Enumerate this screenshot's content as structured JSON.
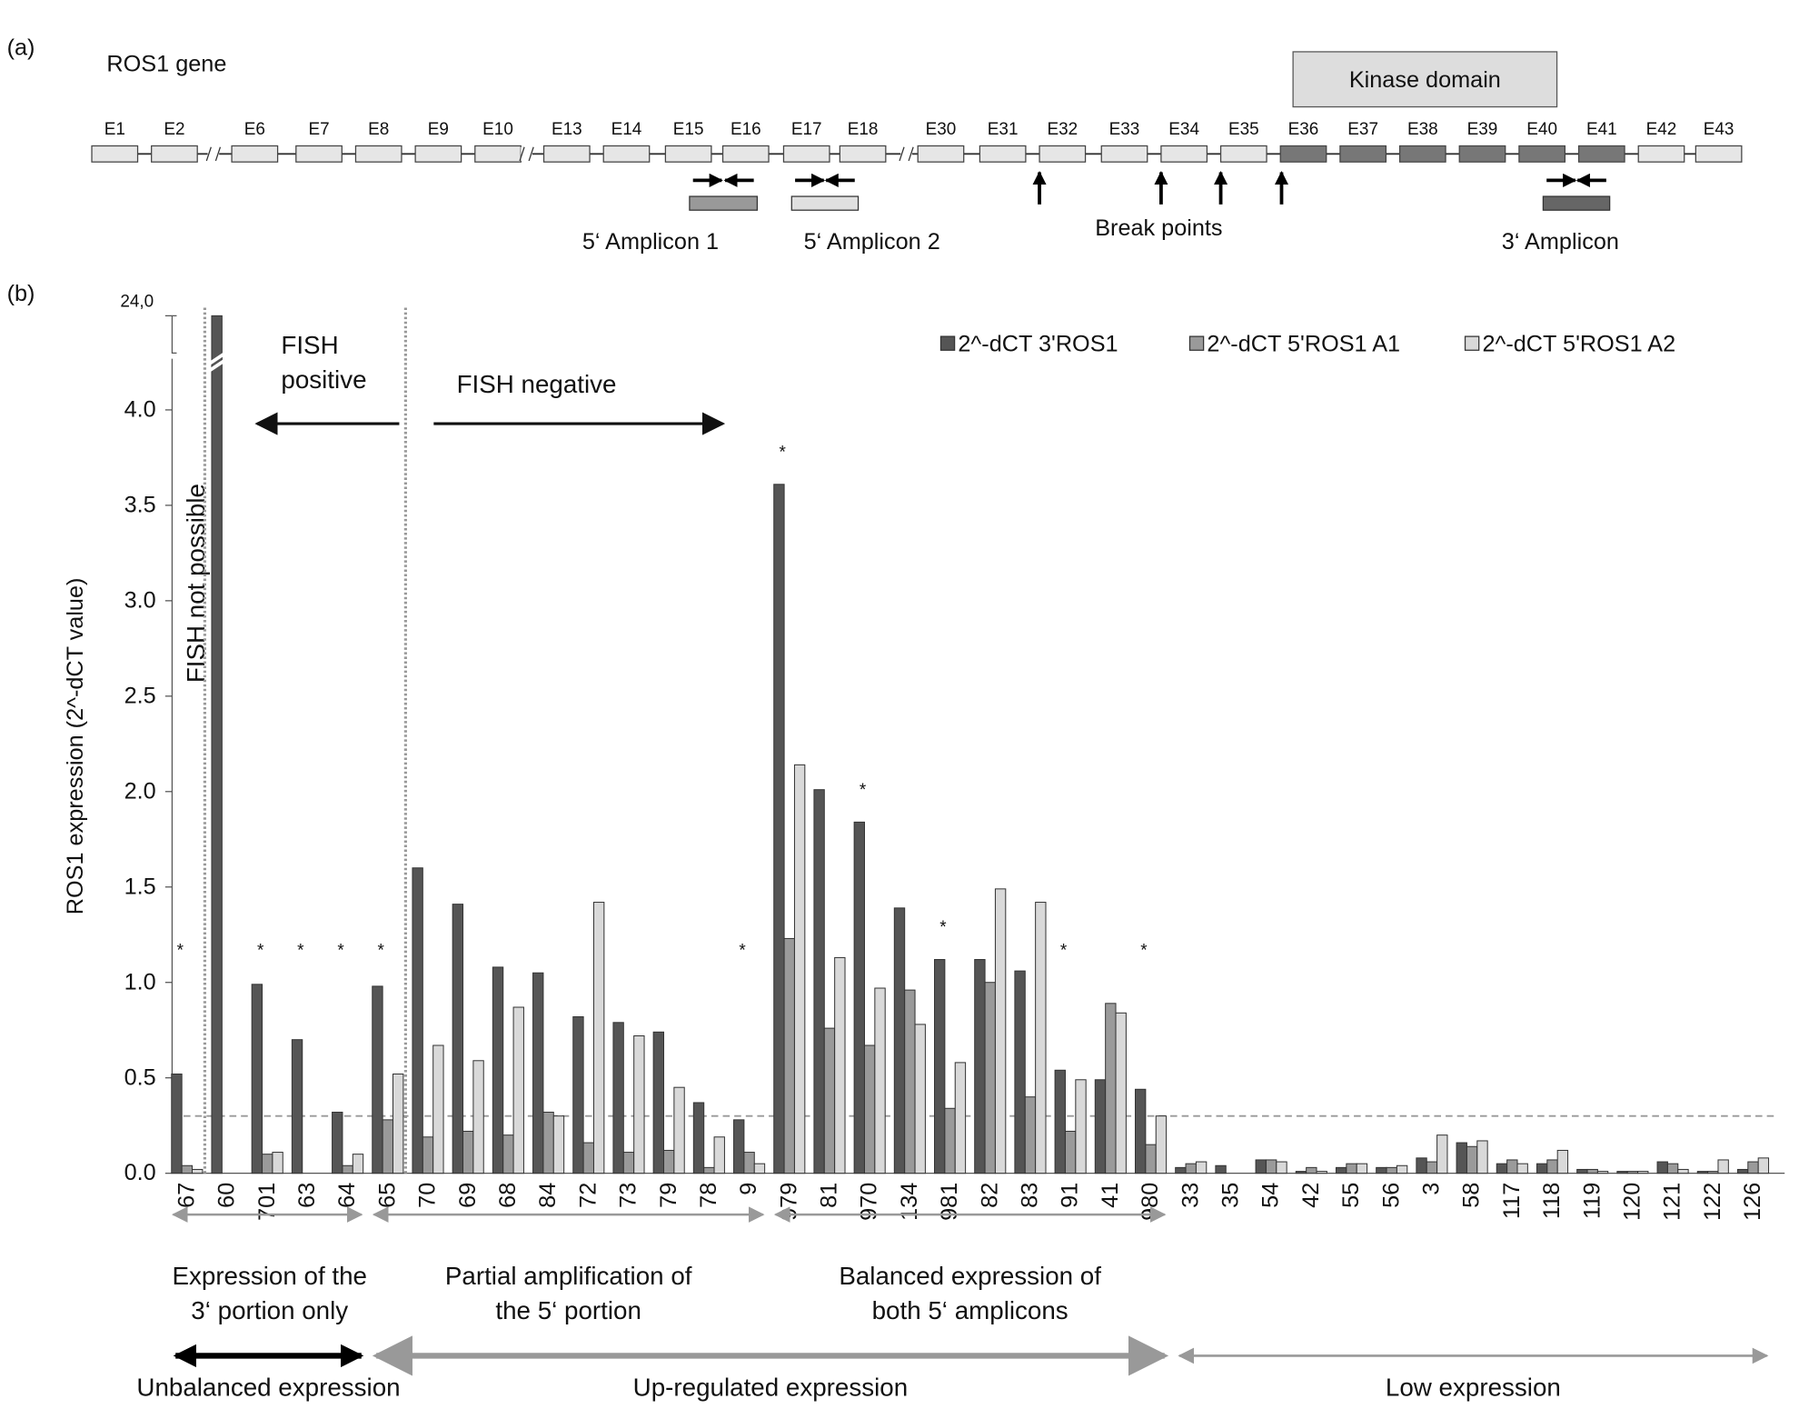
{
  "panel_a_label": "(a)",
  "panel_b_label": "(b)",
  "gene_diagram": {
    "title": "ROS1 gene",
    "domain_label": "Kinase domain",
    "exons": [
      "E1",
      "E2",
      "E6",
      "E7",
      "E8",
      "E9",
      "E10",
      "E13",
      "E14",
      "E15",
      "E16",
      "E17",
      "E18",
      "E30",
      "E31",
      "E32",
      "E33",
      "E34",
      "E35",
      "E36",
      "E37",
      "E38",
      "E39",
      "E40",
      "E41",
      "E42",
      "E43"
    ],
    "shaded_exons": [
      "E36",
      "E37",
      "E38",
      "E39",
      "E40",
      "E41"
    ],
    "amplicon_labels": [
      "5‘ Amplicon 1",
      "5‘ Amplicon 2",
      "3‘ Amplicon"
    ],
    "break_points_label": "Break points"
  },
  "chart_data": {
    "type": "bar",
    "y_label": "ROS1 expression   (2^-dCT value)",
    "categories": [
      "67",
      "60",
      "701",
      "63",
      "64",
      "65",
      "70",
      "69",
      "68",
      "84",
      "72",
      "73",
      "79",
      "78",
      "9",
      "979",
      "81",
      "970",
      "134",
      "981",
      "82",
      "83",
      "91",
      "41",
      "980",
      "33",
      "35",
      "54",
      "42",
      "55",
      "56",
      "3",
      "58",
      "117",
      "118",
      "119",
      "120",
      "121",
      "122",
      "126"
    ],
    "series": [
      {
        "name": "2^-dCT 3'ROS1",
        "color": "#555555",
        "values": [
          0.52,
          24,
          0.99,
          0.7,
          0.32,
          0.98,
          1.6,
          1.41,
          1.08,
          1.05,
          0.82,
          0.79,
          0.74,
          0.37,
          0.28,
          3.61,
          2.01,
          1.84,
          1.39,
          1.12,
          1.12,
          1.06,
          0.54,
          0.49,
          0.44,
          0.03,
          0.04,
          0.07,
          0.01,
          0.03,
          0.03,
          0.08,
          0.16,
          0.05,
          0.05,
          0.02,
          0.01,
          0.06,
          0.01,
          0.02
        ]
      },
      {
        "name": "2^-dCT 5'ROS1 A1",
        "color": "#9a9a9a",
        "values": [
          0.04,
          0,
          0.1,
          0,
          0.04,
          0.28,
          0.19,
          0.22,
          0.2,
          0.32,
          0.16,
          0.11,
          0.12,
          0.03,
          0.11,
          1.23,
          0.76,
          0.67,
          0.96,
          0.34,
          1.0,
          0.4,
          0.22,
          0.89,
          0.15,
          0.05,
          0,
          0.07,
          0.03,
          0.05,
          0.03,
          0.06,
          0.14,
          0.07,
          0.07,
          0.02,
          0.01,
          0.05,
          0.01,
          0.06
        ]
      },
      {
        "name": "2^-dCT 5'ROS1 A2",
        "color": "#d9d9d9",
        "values": [
          0.02,
          0,
          0.11,
          0,
          0.1,
          0.52,
          0.67,
          0.59,
          0.87,
          0.3,
          1.42,
          0.72,
          0.45,
          0.19,
          0.05,
          2.14,
          1.13,
          0.97,
          0.78,
          0.58,
          1.49,
          1.42,
          0.49,
          0.84,
          0.3,
          0.06,
          0,
          0.06,
          0.01,
          0.05,
          0.04,
          0.2,
          0.17,
          0.05,
          0.12,
          0.01,
          0.01,
          0.02,
          0.07,
          0.08
        ]
      }
    ],
    "ylim": [
      0,
      24
    ],
    "axis_break": 4.25,
    "yticks": [
      {
        "value": 0,
        "label": "0.0"
      },
      {
        "value": 0.5,
        "label": "0.5"
      },
      {
        "value": 1,
        "label": "1.0"
      },
      {
        "value": 1.5,
        "label": "1.5"
      },
      {
        "value": 2,
        "label": "2.0"
      },
      {
        "value": 2.5,
        "label": "2.5"
      },
      {
        "value": 3,
        "label": "3.0"
      },
      {
        "value": 3.5,
        "label": "3.5"
      },
      {
        "value": 4,
        "label": "4.0"
      },
      {
        "value": 24,
        "label": "24,0"
      }
    ],
    "threshold": 0.3,
    "legend": "top-right",
    "star_label": "*",
    "starred": [
      "67",
      "701",
      "63",
      "64",
      "65",
      "9",
      "979",
      "970",
      "981",
      "91",
      "980"
    ],
    "fish_positive": [
      "FISH",
      "positive"
    ],
    "fish_negative": "FISH negative",
    "fish_not_possible": "FISH not possible",
    "groups": [
      [
        "Expression of the",
        "3‘ portion only"
      ],
      [
        "Partial amplification of",
        "the 5‘ portion"
      ],
      [
        "Balanced expression of",
        "both 5‘ amplicons"
      ]
    ],
    "expression_classes": [
      "Unbalanced expression",
      "Up-regulated expression",
      "Low expression"
    ]
  }
}
